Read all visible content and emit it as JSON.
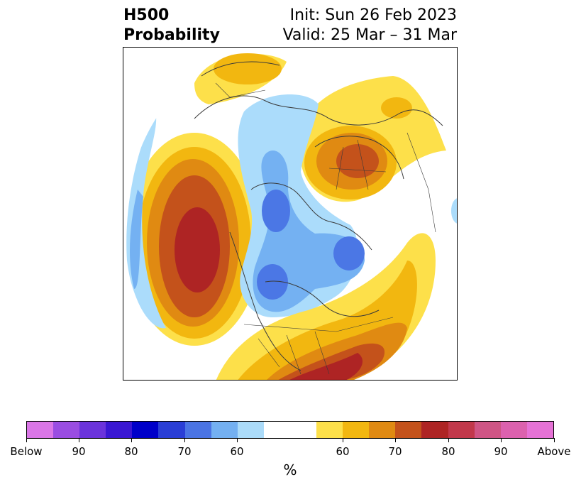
{
  "header": {
    "variable_line1": "H500",
    "variable_line2": "Probability",
    "init_label": "Init: Sun 26 Feb 2023",
    "valid_label": "Valid: 25 Mar – 31 Mar"
  },
  "map": {
    "projection": "polar stereographic, North Pole",
    "palette": {
      "below_60": "#abdcfb",
      "below_70": "#74b1f2",
      "below_80": "#4b77e5",
      "below_90": "#2e46d6",
      "neutral": "#ffffff",
      "above_60": "#fde04a",
      "above_70": "#f2b710",
      "above_80": "#e08a12",
      "above_90": "#c4521b",
      "above_100": "#ae2424",
      "border": "#3a3a3a"
    }
  },
  "colorbar": {
    "colors": [
      "#da76e7",
      "#9a4de2",
      "#6b33db",
      "#3a17d3",
      "#0000c9",
      "#2a3ed6",
      "#4b74e4",
      "#74b0f1",
      "#abdbf9",
      "#ffffff",
      "#fde04a",
      "#f2b710",
      "#e08a12",
      "#c4521b",
      "#ae2424",
      "#c2384b",
      "#cf5585",
      "#dc61ae",
      "#e672d6"
    ],
    "tick_labels": [
      "Below",
      "90",
      "80",
      "70",
      "60",
      "60",
      "70",
      "80",
      "90",
      "Above"
    ],
    "unit_label": "%"
  }
}
